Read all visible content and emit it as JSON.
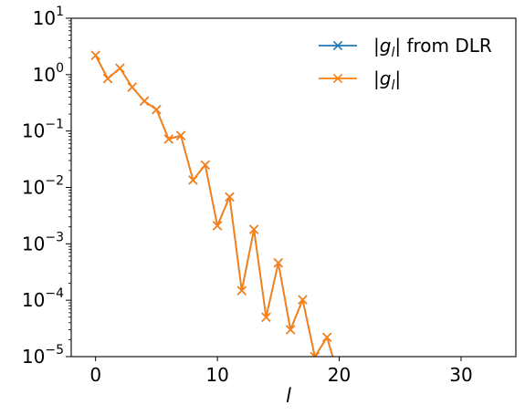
{
  "chart_data": {
    "type": "line",
    "xlabel": "l",
    "yscale": "log",
    "xlim": [
      -2,
      34.5
    ],
    "ylim": [
      1e-05,
      10
    ],
    "xticks": [
      0,
      10,
      20,
      30
    ],
    "yticks": [
      {
        "value": 1e-05,
        "base": "10",
        "exp": "−5"
      },
      {
        "value": 0.0001,
        "base": "10",
        "exp": "−4"
      },
      {
        "value": 0.001,
        "base": "10",
        "exp": "−3"
      },
      {
        "value": 0.01,
        "base": "10",
        "exp": "−2"
      },
      {
        "value": 0.1,
        "base": "10",
        "exp": "−1"
      },
      {
        "value": 1,
        "base": "10",
        "exp": "0"
      },
      {
        "value": 10,
        "base": "10",
        "exp": "1"
      }
    ],
    "grid": false,
    "legend_position": "top-right",
    "legend": [
      {
        "prefix": "|",
        "symbol": "g",
        "subscript": "l",
        "suffix": "| from DLR",
        "color": "#1f77b4"
      },
      {
        "prefix": "|",
        "symbol": "g",
        "subscript": "l",
        "suffix": "|",
        "color": "#ff7f0e"
      }
    ],
    "series": [
      {
        "color": "#1f77b4",
        "marker": "x",
        "x": [
          0,
          1,
          2,
          3,
          4,
          5,
          6,
          7,
          8,
          9,
          10,
          11,
          12,
          13,
          14,
          15,
          16,
          17,
          18,
          19,
          20
        ],
        "y": [
          2.2,
          0.85,
          1.3,
          0.6,
          0.34,
          0.24,
          0.072,
          0.083,
          0.0135,
          0.025,
          0.0021,
          0.0068,
          0.000148,
          0.0018,
          5e-05,
          0.00046,
          3e-05,
          0.000102,
          1e-05,
          2.2e-05,
          4e-06
        ]
      },
      {
        "color": "#ff7f0e",
        "marker": "x",
        "x": [
          0,
          1,
          2,
          3,
          4,
          5,
          6,
          7,
          8,
          9,
          10,
          11,
          12,
          13,
          14,
          15,
          16,
          17,
          18,
          19,
          20
        ],
        "y": [
          2.2,
          0.85,
          1.3,
          0.6,
          0.34,
          0.24,
          0.072,
          0.083,
          0.0135,
          0.025,
          0.0021,
          0.0068,
          0.000148,
          0.0018,
          5e-05,
          0.00046,
          3e-05,
          0.000102,
          1e-05,
          2.2e-05,
          4e-06
        ]
      }
    ]
  }
}
